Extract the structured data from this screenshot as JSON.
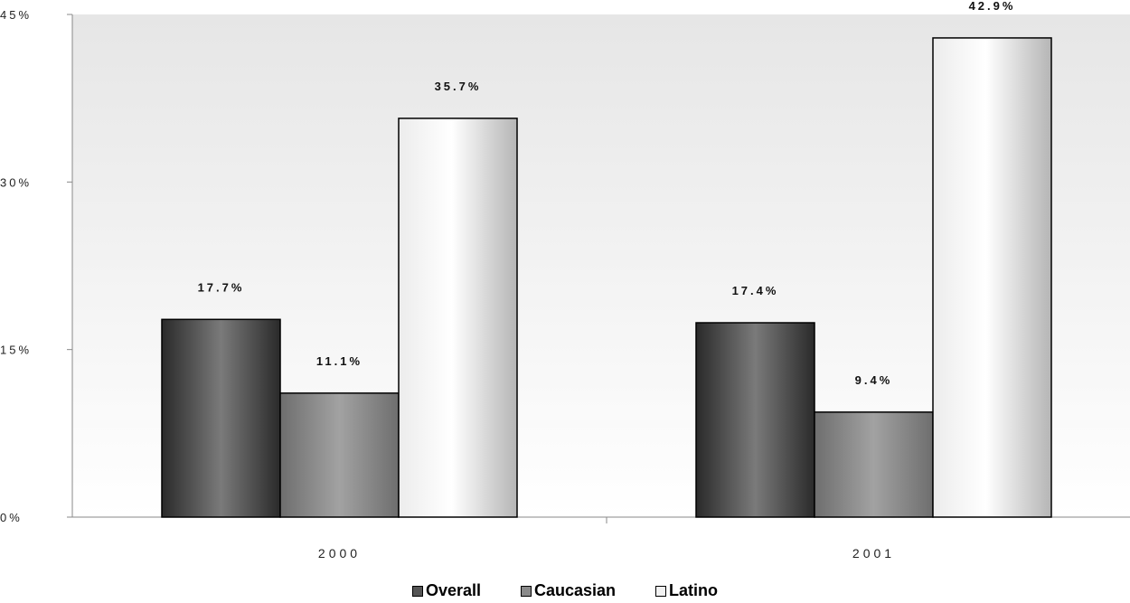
{
  "chart_data": {
    "type": "bar",
    "categories": [
      "2000",
      "2001"
    ],
    "series": [
      {
        "name": "Overall",
        "values": [
          17.7,
          17.4
        ],
        "labels": [
          "17.7%",
          "17.4%"
        ],
        "color": "#555555"
      },
      {
        "name": "Caucasian",
        "values": [
          11.1,
          9.4
        ],
        "labels": [
          "11.1%",
          "9.4%"
        ],
        "color": "#8a8a8a"
      },
      {
        "name": "Latino",
        "values": [
          35.7,
          42.9
        ],
        "labels": [
          "35.7%",
          "42.9%"
        ],
        "color": "#f2f2f2"
      }
    ],
    "y_ticks": [
      "0%",
      "15%",
      "30%",
      "45%"
    ],
    "ylim": [
      0,
      45
    ],
    "title": "",
    "xlabel": "",
    "ylabel": "",
    "grid": false,
    "legend": "bottom"
  }
}
